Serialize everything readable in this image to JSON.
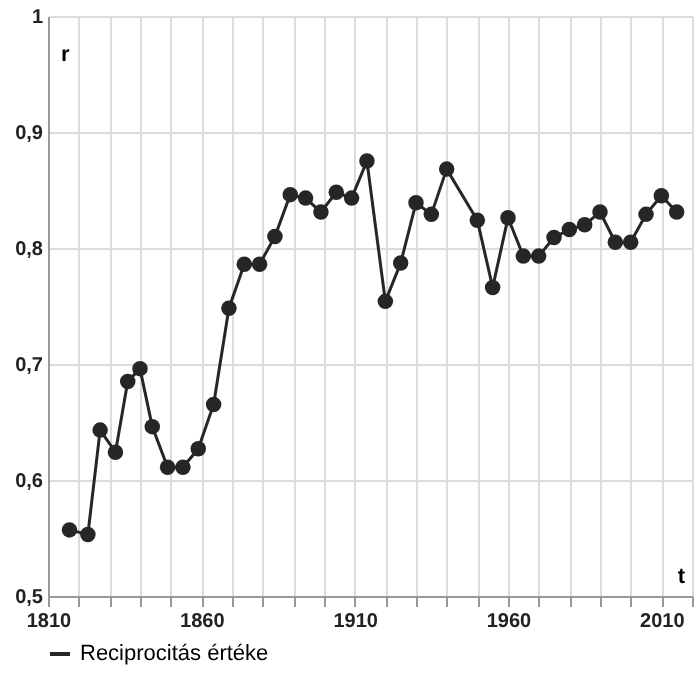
{
  "chart_data": {
    "type": "line",
    "xlabel": "t",
    "ylabel": "r",
    "x": [
      1817,
      1823,
      1827,
      1832,
      1836,
      1840,
      1844,
      1849,
      1854,
      1859,
      1864,
      1869,
      1874,
      1879,
      1884,
      1889,
      1894,
      1899,
      1904,
      1909,
      1914,
      1920,
      1925,
      1930,
      1935,
      1940,
      1950,
      1955,
      1960,
      1965,
      1970,
      1975,
      1980,
      1985,
      1990,
      1995,
      2000,
      2005,
      2010,
      2015
    ],
    "series": [
      {
        "name": "Reciprocitás értéke",
        "color": "#262626",
        "values": [
          0.557,
          0.553,
          0.643,
          0.624,
          0.685,
          0.696,
          0.646,
          0.611,
          0.611,
          0.627,
          0.665,
          0.748,
          0.786,
          0.786,
          0.81,
          0.846,
          0.843,
          0.831,
          0.848,
          0.843,
          0.875,
          0.754,
          0.787,
          0.839,
          0.829,
          0.868,
          0.824,
          0.766,
          0.826,
          0.793,
          0.793,
          0.809,
          0.816,
          0.82,
          0.831,
          0.805,
          0.805,
          0.829,
          0.845,
          0.831
        ]
      }
    ],
    "xlim": [
      1810,
      2020
    ],
    "xticks": [
      1810,
      {
        "value": 1820,
        "label": null
      },
      {
        "value": 1830,
        "label": null
      },
      {
        "value": 1840,
        "label": null
      },
      {
        "value": 1850,
        "label": null
      },
      1860,
      {
        "value": 1870,
        "label": null
      },
      {
        "value": 1880,
        "label": null
      },
      {
        "value": 1890,
        "label": null
      },
      {
        "value": 1900,
        "label": null
      },
      1910,
      {
        "value": 1920,
        "label": null
      },
      {
        "value": 1930,
        "label": null
      },
      {
        "value": 1940,
        "label": null
      },
      {
        "value": 1950,
        "label": null
      },
      1960,
      {
        "value": 1970,
        "label": null
      },
      {
        "value": 1980,
        "label": null
      },
      {
        "value": 1990,
        "label": null
      },
      {
        "value": 2000,
        "label": null
      },
      2010,
      {
        "value": 2020,
        "label": null
      }
    ],
    "ylim": [
      0.5,
      1
    ],
    "yticks": [
      {
        "value": 0.5,
        "label": "0,5"
      },
      {
        "value": 0.6,
        "label": "0,6"
      },
      {
        "value": 0.7,
        "label": "0,7"
      },
      {
        "value": 0.8,
        "label": "0,8"
      },
      {
        "value": 0.9,
        "label": "0,9"
      },
      1
    ],
    "grid": true,
    "legend": "bottom",
    "marker": "circle",
    "line_style": "solid"
  }
}
